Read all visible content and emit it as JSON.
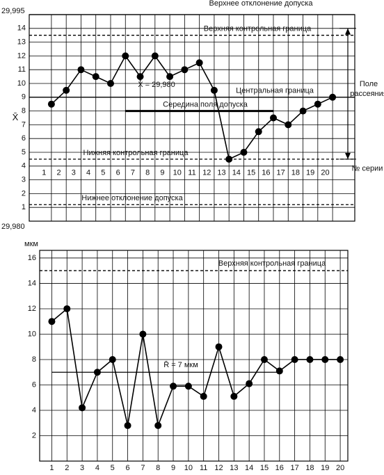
{
  "chart_data": [
    {
      "type": "line",
      "y_label": "X̄",
      "top_label": "29,995",
      "bottom_label": "29,980",
      "x_label": "№ серии",
      "x": [
        1,
        2,
        3,
        4,
        5,
        6,
        7,
        8,
        9,
        10,
        11,
        12,
        13,
        14,
        15,
        16,
        17,
        18,
        19,
        20
      ],
      "xlim": [
        -0.5,
        21.5
      ],
      "series": [
        {
          "color": "#000000",
          "values": [
            8.5,
            9.5,
            11,
            10.5,
            10,
            12,
            10.5,
            12,
            10.5,
            11,
            11.5,
            9.5,
            4.5,
            5,
            6.5,
            7.5,
            7,
            8,
            8.5,
            9
          ]
        }
      ],
      "ylim": [
        0,
        15
      ],
      "yticks": [
        1,
        2,
        3,
        4,
        5,
        6,
        7,
        8,
        9,
        10,
        11,
        12,
        13,
        14
      ],
      "grid": true,
      "reference_lines": [
        {
          "label": "Верхнее отклонение допуска",
          "value": 15,
          "style": "solid"
        },
        {
          "label": "Верхняя контрольная граница",
          "value": 13.5,
          "style": "dashed"
        },
        {
          "label": "Центральная граница",
          "value": 9,
          "style": "solid"
        },
        {
          "label": "Середина поля допуска",
          "value": 8,
          "style": "thick",
          "from": 6,
          "to": 16
        },
        {
          "label": "Нижняя контрольная граница",
          "value": 4.5,
          "style": "dashed"
        },
        {
          "label": "Нижнее отклонение допуска",
          "value": 1.2,
          "style": "dashed"
        }
      ],
      "mean_label": "X̄ = 29,980",
      "spread": {
        "label": "Поле рассеяния",
        "range": [
          4.5,
          14
        ]
      }
    },
    {
      "type": "line",
      "y_label": "мкм",
      "x": [
        1,
        2,
        3,
        4,
        5,
        6,
        7,
        8,
        9,
        10,
        11,
        12,
        13,
        14,
        15,
        16,
        17,
        18,
        19,
        20
      ],
      "xlim": [
        0.2,
        20.5
      ],
      "series": [
        {
          "color": "#000000",
          "values": [
            11,
            12,
            4.2,
            7,
            8,
            2.8,
            10,
            2.8,
            5.9,
            5.9,
            5.1,
            9,
            5.1,
            6.1,
            8,
            7.1,
            8,
            8,
            8,
            8
          ]
        }
      ],
      "ylim": [
        0,
        16.6
      ],
      "yticks": [
        2,
        4,
        6,
        8,
        10,
        12,
        14,
        16
      ],
      "grid": true,
      "reference_lines": [
        {
          "label": "Верхняя контрольная граница",
          "value": 15,
          "style": "dashed"
        },
        {
          "label": "R̄ = 7 мкм",
          "value": 7,
          "style": "solid",
          "from": 1,
          "to": 16
        }
      ]
    }
  ]
}
